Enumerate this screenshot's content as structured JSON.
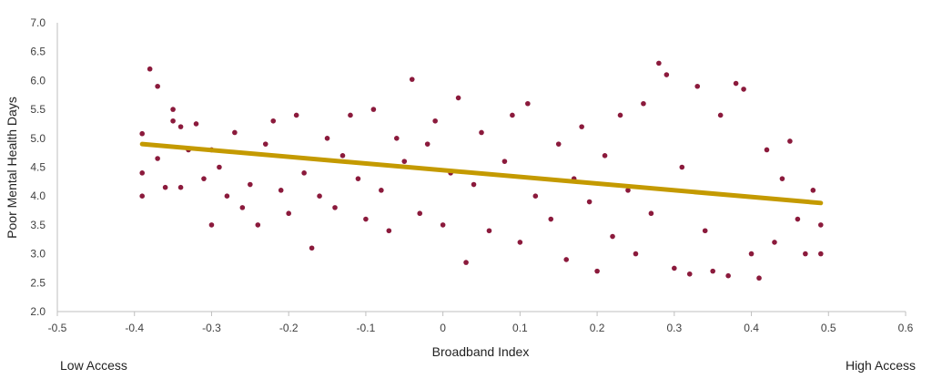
{
  "chart_data": {
    "type": "scatter",
    "xlabel": "Broadband Index",
    "ylabel": "Poor Mental Health Days",
    "xlim": [
      -0.5,
      0.6
    ],
    "ylim": [
      2.0,
      7.0
    ],
    "x_ticks": [
      "-0.5",
      "-0.4",
      "-0.3",
      "-0.2",
      "-0.1",
      "0",
      "0.1",
      "0.2",
      "0.3",
      "0.4",
      "0.5",
      "0.6"
    ],
    "y_ticks": [
      "2.0",
      "2.5",
      "3.0",
      "3.5",
      "4.0",
      "4.5",
      "5.0",
      "5.5",
      "6.0",
      "6.5",
      "7.0"
    ],
    "x_left_caption": "Low Access",
    "x_right_caption": "High Access",
    "grid": false,
    "colors": {
      "points": "#8b1a3c",
      "trendline": "#c49a00"
    },
    "trendline": {
      "x": [
        -0.39,
        0.49
      ],
      "y": [
        4.9,
        3.88
      ]
    },
    "series": [
      {
        "points": [
          [
            -0.39,
            4.0
          ],
          [
            -0.39,
            4.4
          ],
          [
            -0.39,
            5.08
          ],
          [
            -0.38,
            6.2
          ],
          [
            -0.37,
            5.9
          ],
          [
            -0.37,
            4.65
          ],
          [
            -0.36,
            4.15
          ],
          [
            -0.35,
            5.5
          ],
          [
            -0.35,
            5.3
          ],
          [
            -0.34,
            4.15
          ],
          [
            -0.34,
            5.2
          ],
          [
            -0.33,
            4.8
          ],
          [
            -0.32,
            5.25
          ],
          [
            -0.31,
            4.3
          ],
          [
            -0.3,
            3.5
          ],
          [
            -0.3,
            4.8
          ],
          [
            -0.29,
            4.5
          ],
          [
            -0.28,
            4.0
          ],
          [
            -0.27,
            5.1
          ],
          [
            -0.26,
            3.8
          ],
          [
            -0.25,
            4.2
          ],
          [
            -0.24,
            3.5
          ],
          [
            -0.23,
            4.9
          ],
          [
            -0.22,
            5.3
          ],
          [
            -0.21,
            4.1
          ],
          [
            -0.2,
            3.7
          ],
          [
            -0.19,
            5.4
          ],
          [
            -0.18,
            4.4
          ],
          [
            -0.17,
            3.1
          ],
          [
            -0.16,
            4.0
          ],
          [
            -0.15,
            5.0
          ],
          [
            -0.14,
            3.8
          ],
          [
            -0.13,
            4.7
          ],
          [
            -0.12,
            5.4
          ],
          [
            -0.11,
            4.3
          ],
          [
            -0.1,
            3.6
          ],
          [
            -0.09,
            5.5
          ],
          [
            -0.08,
            4.1
          ],
          [
            -0.07,
            3.4
          ],
          [
            -0.06,
            5.0
          ],
          [
            -0.05,
            4.6
          ],
          [
            -0.04,
            6.02
          ],
          [
            -0.03,
            3.7
          ],
          [
            -0.02,
            4.9
          ],
          [
            -0.01,
            5.3
          ],
          [
            0.0,
            3.5
          ],
          [
            0.01,
            4.4
          ],
          [
            0.02,
            5.7
          ],
          [
            0.03,
            2.85
          ],
          [
            0.04,
            4.2
          ],
          [
            0.05,
            5.1
          ],
          [
            0.06,
            3.4
          ],
          [
            0.08,
            4.6
          ],
          [
            0.09,
            5.4
          ],
          [
            0.1,
            3.2
          ],
          [
            0.11,
            5.6
          ],
          [
            0.12,
            4.0
          ],
          [
            0.14,
            3.6
          ],
          [
            0.15,
            4.9
          ],
          [
            0.16,
            2.9
          ],
          [
            0.17,
            4.3
          ],
          [
            0.18,
            5.2
          ],
          [
            0.19,
            3.9
          ],
          [
            0.2,
            2.7
          ],
          [
            0.21,
            4.7
          ],
          [
            0.22,
            3.3
          ],
          [
            0.23,
            5.4
          ],
          [
            0.24,
            4.1
          ],
          [
            0.25,
            3.0
          ],
          [
            0.26,
            5.6
          ],
          [
            0.27,
            3.7
          ],
          [
            0.28,
            6.3
          ],
          [
            0.29,
            6.1
          ],
          [
            0.3,
            2.75
          ],
          [
            0.31,
            4.5
          ],
          [
            0.32,
            2.65
          ],
          [
            0.33,
            5.9
          ],
          [
            0.34,
            3.4
          ],
          [
            0.35,
            2.7
          ],
          [
            0.36,
            5.4
          ],
          [
            0.37,
            2.62
          ],
          [
            0.38,
            5.95
          ],
          [
            0.39,
            5.85
          ],
          [
            0.4,
            3.0
          ],
          [
            0.41,
            2.58
          ],
          [
            0.42,
            4.8
          ],
          [
            0.43,
            3.2
          ],
          [
            0.44,
            4.3
          ],
          [
            0.45,
            4.95
          ],
          [
            0.46,
            3.6
          ],
          [
            0.47,
            3.0
          ],
          [
            0.48,
            4.1
          ],
          [
            0.49,
            3.5
          ],
          [
            0.49,
            3.0
          ]
        ]
      }
    ]
  }
}
